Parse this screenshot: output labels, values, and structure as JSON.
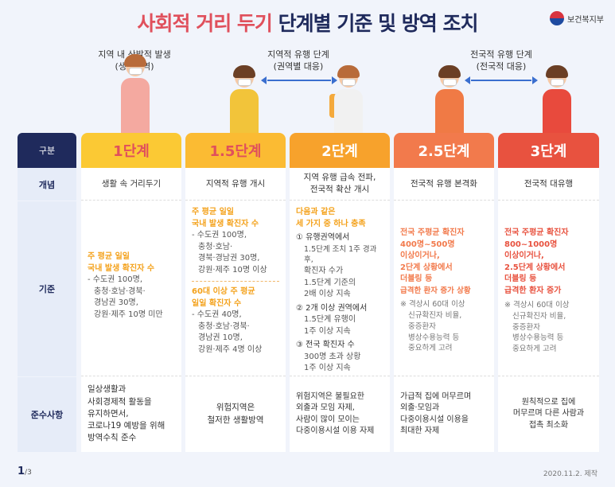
{
  "title_part1": "사회적 거리 두기",
  "title_part2": "단계별 기준 및 방역 조치",
  "ministry": "보건복지부",
  "top_labels": {
    "l1_line1": "지역 내 산발적 발생",
    "l1_line2": "(생활방역)",
    "l2_line1": "지역적 유행 단계",
    "l2_line2": "(권역별 대응)",
    "l3_line1": "전국적 유행 단계",
    "l3_line2": "(전국적 대응)"
  },
  "row_heads": {
    "header": "구분",
    "concept": "개념",
    "criteria": "기준",
    "rules": "준수사항"
  },
  "colors": {
    "s1": "#fbc934",
    "s15": "#fbbb33",
    "s2": "#f7a22c",
    "s25": "#f27a4c",
    "s3": "#e8523f",
    "navy": "#1f2a5c"
  },
  "stages": [
    {
      "name": "1단계",
      "concept": "생활 속 거리두기",
      "crit_hl1": "주 평균 일일",
      "crit_hl2": "국내 발생 확진자 수",
      "crit_l1": "- 수도권 100명,",
      "crit_l2": "충청·호남·경북·",
      "crit_l3": "경남권 30명,",
      "crit_l4": "강원·제주 10명 미만",
      "rules_l1": "일상생활과",
      "rules_l2": "사회경제적 활동을",
      "rules_l3": "유지하면서,",
      "rules_l4": "코로나19 예방을 위해",
      "rules_l5": "방역수칙 준수"
    },
    {
      "name": "1.5단계",
      "concept": "지역적 유행 개시",
      "crit_hl1": "주 평균 일일",
      "crit_hl2": "국내 발생 확진자 수",
      "crit_l1": "- 수도권 100명,",
      "crit_l2": "충청·호남·",
      "crit_l3": "경북·경남권 30명,",
      "crit_l4": "강원·제주 10명 이상",
      "crit_hl3": "60대 이상 주 평균",
      "crit_hl4": "일일 확진자 수",
      "crit_l5": "- 수도권 40명,",
      "crit_l6": "충청·호남·경북·",
      "crit_l7": "경남권 10명,",
      "crit_l8": "강원·제주 4명 이상",
      "rules_l1": "위험지역은",
      "rules_l2": "철저한 생활방역"
    },
    {
      "name": "2단계",
      "concept_l1": "지역 유행 급속 전파,",
      "concept_l2": "전국적 확산 개시",
      "crit_hl1": "다음과 같은",
      "crit_hl2": "세 가지 중 하나 충족",
      "crit_a1": "① 유행권역에서",
      "crit_a2": "1.5단계 조치 1주 경과 후,",
      "crit_a3": "확진자 수가",
      "crit_a4": "1.5단계 기준의",
      "crit_a5": "2배 이상 지속",
      "crit_b1": "② 2개 이상 권역에서",
      "crit_b2": "1.5단계 유행이",
      "crit_b3": "1주 이상 지속",
      "crit_c1": "③ 전국 확진자 수",
      "crit_c2": "300명 초과 상황",
      "crit_c3": "1주 이상 지속",
      "rules_l1": "위험지역은 불필요한",
      "rules_l2": "외출과 모임 자제,",
      "rules_l3": "사람이 많이 모이는",
      "rules_l4": "다중이용시설 이용 자제"
    },
    {
      "name": "2.5단계",
      "concept": "전국적 유행 본격화",
      "crit_hl1": "전국 주평균 확진자",
      "crit_hl2": "400명~500명",
      "crit_hl3": "이상이거나,",
      "crit_hl4": "2단계 상황에서",
      "crit_hl5": "더블링 등",
      "crit_hl6": "급격한 환자 증가 상황",
      "crit_n1": "※ 격상시 60대 이상",
      "crit_n2": "신규확진자 비율,",
      "crit_n3": "중증환자",
      "crit_n4": "병상수용능력 등",
      "crit_n5": "중요하게 고려",
      "rules_l1": "가급적 집에 머무르며",
      "rules_l2": "외출·모임과",
      "rules_l3": "다중이용시설 이용을",
      "rules_l4": "최대한 자제"
    },
    {
      "name": "3단계",
      "concept": "전국적 대유행",
      "crit_hl1": "전국 주평균 확진자",
      "crit_hl2": "800~1000명",
      "crit_hl3": "이상이거나,",
      "crit_hl4": "2.5단계 상황에서",
      "crit_hl5": "더블링 등",
      "crit_hl6": "급격한 환자 증가",
      "crit_n1": "※ 격상시 60대 이상",
      "crit_n2": "신규확진자 비율,",
      "crit_n3": "중증환자",
      "crit_n4": "병상수용능력 등",
      "crit_n5": "중요하게 고려",
      "rules_l1": "원칙적으로 집에",
      "rules_l2": "머무르며 다른 사람과",
      "rules_l3": "접촉 최소화"
    }
  ],
  "footer": {
    "page": "1",
    "total": "/3",
    "date": "2020.11.2. 제작"
  }
}
